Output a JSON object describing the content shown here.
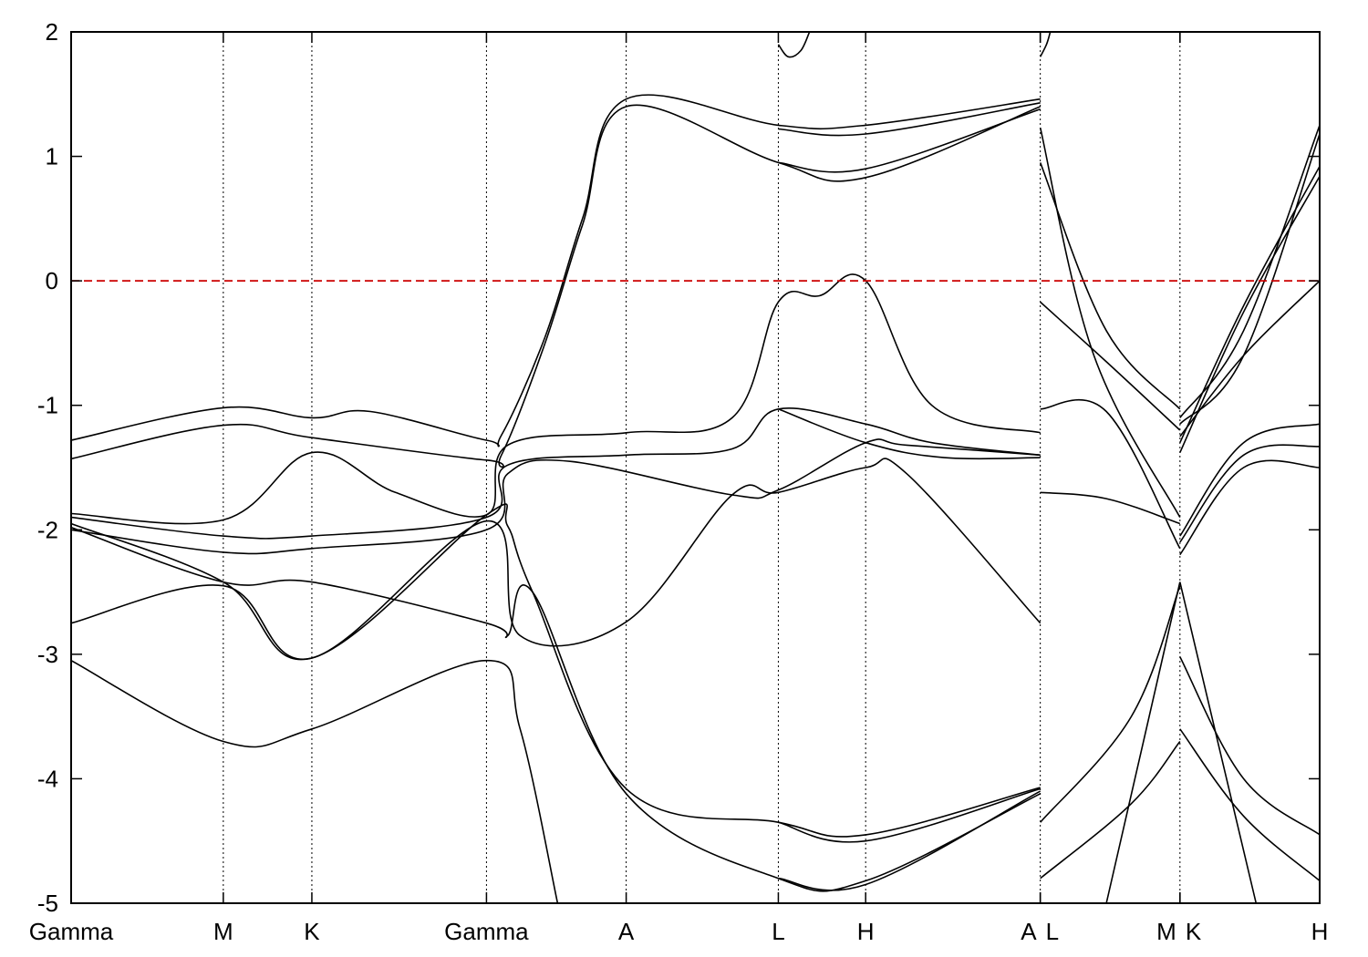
{
  "chart_data": {
    "type": "line",
    "title": "",
    "xlabel": "",
    "ylabel": "",
    "ylim": [
      -5,
      2
    ],
    "yticks": [
      2,
      1,
      0,
      -1,
      -2,
      -3,
      -4,
      -5
    ],
    "grid": false,
    "fermi_level": {
      "y": 0,
      "color": "#cc0000",
      "style": "dashed"
    },
    "kpath": [
      {
        "label": "Gamma",
        "x": 0.0
      },
      {
        "label": "M",
        "x": 1.22
      },
      {
        "label": "K",
        "x": 1.93
      },
      {
        "label": "Gamma",
        "x": 3.33
      },
      {
        "label": "A",
        "x": 4.45
      },
      {
        "label": "L",
        "x": 5.67
      },
      {
        "label": "H",
        "x": 6.37
      },
      {
        "label": "A",
        "x": 7.77
      },
      {
        "label": "L",
        "x": 7.77
      },
      {
        "label": "M",
        "x": 8.89
      },
      {
        "label": "K",
        "x": 8.89
      },
      {
        "label": "H",
        "x": 10.01
      }
    ],
    "xlim": [
      0,
      10.01
    ],
    "series": [
      {
        "points": [
          [
            0,
            -1.28
          ],
          [
            1.22,
            -1.02
          ],
          [
            1.93,
            -1.1
          ],
          [
            2.4,
            -1.05
          ],
          [
            3.33,
            -1.28
          ],
          [
            3.45,
            -1.24
          ],
          [
            3.8,
            -0.45
          ],
          [
            4.1,
            0.5
          ],
          [
            4.45,
            1.46
          ],
          [
            5.67,
            1.25
          ],
          [
            6.37,
            1.25
          ],
          [
            7.77,
            1.46
          ]
        ]
      },
      {
        "points": [
          [
            0,
            -1.43
          ],
          [
            1.22,
            -1.16
          ],
          [
            1.93,
            -1.26
          ],
          [
            3.33,
            -1.44
          ],
          [
            3.45,
            -1.4
          ],
          [
            3.8,
            -0.5
          ],
          [
            4.1,
            0.45
          ],
          [
            4.45,
            1.4
          ],
          [
            5.67,
            0.95
          ],
          [
            6.37,
            0.83
          ],
          [
            7.77,
            1.4
          ]
        ]
      },
      {
        "points": [
          [
            5.67,
            1.22
          ],
          [
            6.37,
            1.18
          ],
          [
            7.77,
            1.43
          ]
        ]
      },
      {
        "points": [
          [
            5.67,
            0.95
          ],
          [
            6.37,
            0.9
          ],
          [
            7.77,
            1.38
          ]
        ]
      },
      {
        "points": [
          [
            5.67,
            1.9
          ],
          [
            5.75,
            1.8
          ],
          [
            5.85,
            1.85
          ],
          [
            5.92,
            2.0
          ]
        ]
      },
      {
        "points": [
          [
            7.77,
            1.8
          ],
          [
            7.82,
            1.9
          ],
          [
            7.85,
            2.0
          ]
        ]
      },
      {
        "points": [
          [
            0,
            -1.87
          ],
          [
            1.22,
            -1.92
          ],
          [
            1.93,
            -1.38
          ],
          [
            2.6,
            -1.7
          ],
          [
            3.33,
            -1.88
          ],
          [
            3.5,
            -1.32
          ],
          [
            4.45,
            -1.22
          ],
          [
            5.3,
            -1.1
          ],
          [
            5.67,
            -0.17
          ],
          [
            6.0,
            -0.12
          ],
          [
            6.37,
            0.0
          ],
          [
            6.9,
            -1.0
          ],
          [
            7.77,
            -1.22
          ]
        ]
      },
      {
        "points": [
          [
            0,
            -1.9
          ],
          [
            1.22,
            -2.05
          ],
          [
            1.93,
            -2.05
          ],
          [
            3.33,
            -1.9
          ],
          [
            3.5,
            -1.48
          ],
          [
            4.45,
            -1.4
          ],
          [
            5.3,
            -1.35
          ],
          [
            5.67,
            -1.03
          ],
          [
            6.37,
            -1.15
          ],
          [
            6.9,
            -1.3
          ],
          [
            7.77,
            -1.4
          ]
        ]
      },
      {
        "points": [
          [
            5.67,
            -1.03
          ],
          [
            6.37,
            -1.3
          ],
          [
            7.0,
            -1.42
          ],
          [
            7.77,
            -1.42
          ]
        ]
      },
      {
        "points": [
          [
            0,
            -2.0
          ],
          [
            1.22,
            -2.18
          ],
          [
            1.93,
            -2.15
          ],
          [
            3.33,
            -2.0
          ],
          [
            3.5,
            -1.55
          ],
          [
            4.0,
            -1.45
          ],
          [
            5.3,
            -1.72
          ],
          [
            5.67,
            -1.68
          ],
          [
            6.37,
            -1.3
          ],
          [
            6.7,
            -1.32
          ],
          [
            7.77,
            -1.4
          ]
        ]
      },
      {
        "points": [
          [
            0,
            -1.95
          ],
          [
            1.22,
            -2.42
          ],
          [
            1.93,
            -3.03
          ],
          [
            3.33,
            -1.88
          ],
          [
            3.5,
            -1.97
          ],
          [
            3.7,
            -2.5
          ],
          [
            4.45,
            -4.08
          ],
          [
            5.67,
            -4.35
          ],
          [
            6.37,
            -4.45
          ],
          [
            7.77,
            -4.07
          ]
        ]
      },
      {
        "points": [
          [
            0,
            -1.98
          ],
          [
            1.22,
            -2.42
          ],
          [
            1.93,
            -2.42
          ],
          [
            3.33,
            -2.75
          ],
          [
            3.5,
            -2.85
          ],
          [
            3.7,
            -2.5
          ],
          [
            4.45,
            -4.12
          ],
          [
            5.67,
            -4.8
          ],
          [
            6.37,
            -4.82
          ],
          [
            7.77,
            -4.12
          ]
        ]
      },
      {
        "points": [
          [
            0,
            -2.75
          ],
          [
            1.22,
            -2.45
          ],
          [
            1.93,
            -3.03
          ],
          [
            3.33,
            -1.93
          ],
          [
            3.6,
            -2.85
          ],
          [
            4.45,
            -2.74
          ],
          [
            5.3,
            -1.72
          ],
          [
            5.67,
            -1.7
          ],
          [
            6.37,
            -1.5
          ],
          [
            6.7,
            -1.55
          ],
          [
            7.77,
            -2.75
          ]
        ]
      },
      {
        "points": [
          [
            0,
            -3.05
          ],
          [
            1.22,
            -3.7
          ],
          [
            1.93,
            -3.6
          ],
          [
            3.33,
            -3.05
          ],
          [
            3.6,
            -3.6
          ],
          [
            3.9,
            -5.0
          ]
        ]
      },
      {
        "points": [
          [
            5.67,
            -4.35
          ],
          [
            6.37,
            -4.5
          ],
          [
            7.77,
            -4.08
          ]
        ]
      },
      {
        "points": [
          [
            5.67,
            -4.8
          ],
          [
            6.37,
            -4.85
          ],
          [
            7.77,
            -4.1
          ]
        ]
      },
      {
        "points": [
          [
            7.77,
            1.23
          ],
          [
            8.2,
            -0.6
          ],
          [
            8.89,
            -1.9
          ]
        ]
      },
      {
        "points": [
          [
            7.77,
            0.95
          ],
          [
            8.3,
            -0.4
          ],
          [
            8.89,
            -1.03
          ]
        ]
      },
      {
        "points": [
          [
            7.77,
            -0.17
          ],
          [
            8.3,
            -0.65
          ],
          [
            8.89,
            -1.2
          ]
        ]
      },
      {
        "points": [
          [
            7.77,
            -1.03
          ],
          [
            8.3,
            -1.05
          ],
          [
            8.89,
            -2.15
          ]
        ]
      },
      {
        "points": [
          [
            7.77,
            -1.7
          ],
          [
            8.3,
            -1.75
          ],
          [
            8.89,
            -1.95
          ]
        ]
      },
      {
        "points": [
          [
            7.77,
            -4.35
          ],
          [
            8.5,
            -3.5
          ],
          [
            8.89,
            -2.45
          ]
        ]
      },
      {
        "points": [
          [
            7.77,
            -4.8
          ],
          [
            8.5,
            -4.2
          ],
          [
            8.89,
            -3.7
          ]
        ]
      },
      {
        "points": [
          [
            8.3,
            -5.0
          ],
          [
            8.89,
            -2.42
          ]
        ]
      },
      {
        "points": [
          [
            8.89,
            -1.1
          ],
          [
            9.4,
            -0.4
          ],
          [
            10.01,
            1.25
          ]
        ]
      },
      {
        "points": [
          [
            8.89,
            -1.15
          ],
          [
            9.4,
            -0.6
          ],
          [
            10.01,
            1.18
          ]
        ]
      },
      {
        "points": [
          [
            8.89,
            -1.3
          ],
          [
            9.4,
            -0.2
          ],
          [
            10.01,
            0.92
          ]
        ]
      },
      {
        "points": [
          [
            8.89,
            -1.38
          ],
          [
            9.4,
            -0.25
          ],
          [
            10.01,
            0.84
          ]
        ]
      },
      {
        "points": [
          [
            8.89,
            -2.05
          ],
          [
            9.4,
            -1.3
          ],
          [
            10.01,
            -1.15
          ]
        ]
      },
      {
        "points": [
          [
            8.89,
            -2.1
          ],
          [
            9.4,
            -1.4
          ],
          [
            10.01,
            -1.33
          ]
        ]
      },
      {
        "points": [
          [
            8.89,
            -2.2
          ],
          [
            9.4,
            -1.5
          ],
          [
            10.01,
            -1.5
          ]
        ]
      },
      {
        "points": [
          [
            8.89,
            -1.25
          ],
          [
            9.4,
            -0.6
          ],
          [
            10.01,
            0.0
          ]
        ]
      },
      {
        "points": [
          [
            8.89,
            -3.02
          ],
          [
            9.4,
            -4.0
          ],
          [
            10.01,
            -4.45
          ]
        ]
      },
      {
        "points": [
          [
            8.89,
            -3.6
          ],
          [
            9.4,
            -4.3
          ],
          [
            10.01,
            -4.82
          ]
        ]
      },
      {
        "points": [
          [
            8.89,
            -2.42
          ],
          [
            9.5,
            -5.0
          ]
        ]
      }
    ]
  }
}
